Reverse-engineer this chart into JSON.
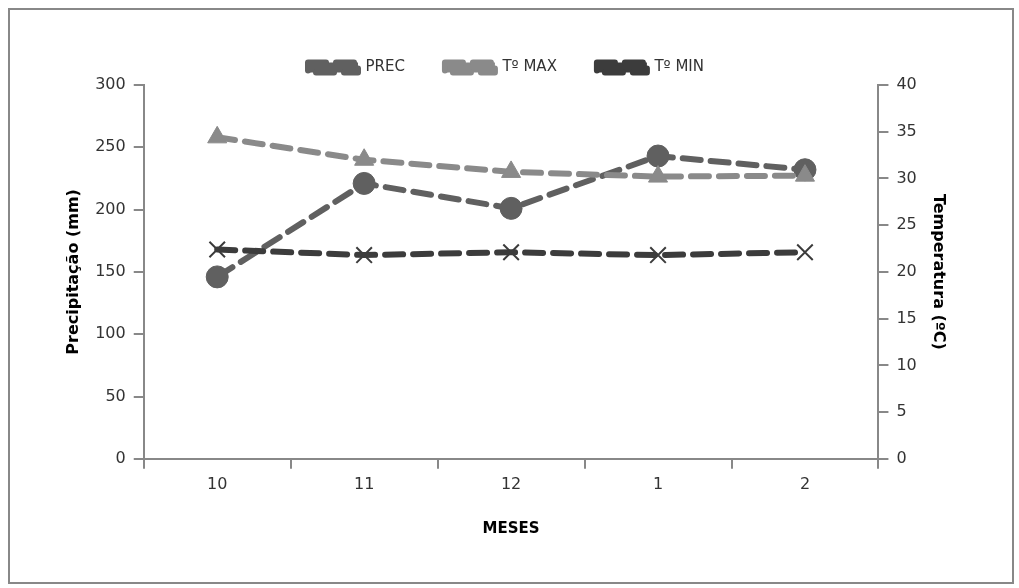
{
  "chart_data": {
    "type": "line",
    "xlabel": "MESES",
    "ylabel": "Precipitação (mm)",
    "y2label": "Temperatura (ºC)",
    "categories": [
      "10",
      "11",
      "12",
      "1",
      "2"
    ],
    "series": [
      {
        "name": "PREC",
        "color": "#606060",
        "values": [
          146,
          221,
          201,
          243,
          232
        ],
        "marker": "circle"
      },
      {
        "name": "Tº MAX",
        "color": "#8a8a8a",
        "values": [
          34.4,
          32,
          30.7,
          30.2,
          30.3
        ],
        "axis": "y2",
        "marker": "triangle"
      },
      {
        "name": "Tº MIN",
        "color": "#3c3c3c",
        "values": [
          22.4,
          21.8,
          22.1,
          21.8,
          22.1
        ],
        "axis": "y2",
        "marker": "cross"
      }
    ],
    "ylim": [
      0,
      300
    ],
    "yticks": [
      0,
      50,
      100,
      150,
      200,
      250,
      300
    ],
    "y2lim": [
      0,
      40
    ],
    "y2ticks": [
      0,
      5,
      10,
      15,
      20,
      25,
      30,
      35,
      40
    ],
    "grid": false,
    "legend": "top",
    "line_style": "dashed"
  }
}
